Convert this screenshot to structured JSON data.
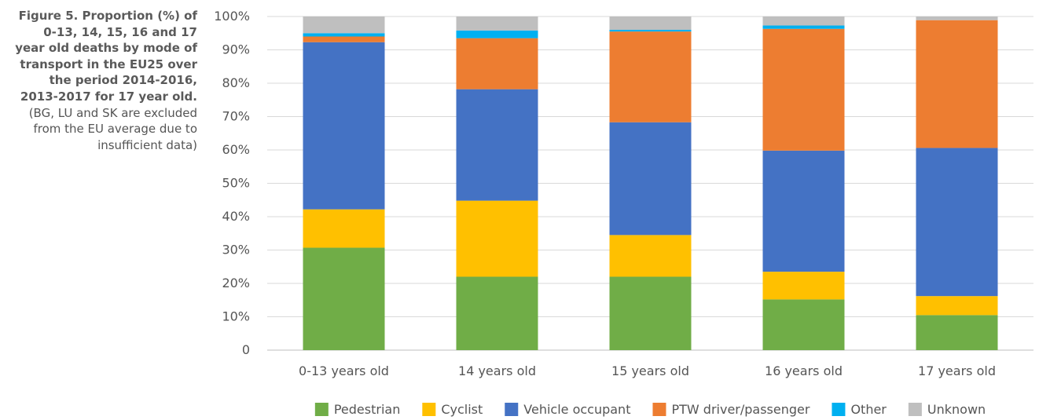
{
  "caption": {
    "bold": "Figure 5. Proportion (%) of 0-13, 14, 15, 16 and 17 year old deaths by mode of transport in the EU25 over the period 2014-2016, 2013-2017 for 17 year old.",
    "normal": " (BG, LU and SK are excluded from the EU average due to insufficient data)"
  },
  "chart_data": {
    "type": "bar",
    "stacked": true,
    "categories": [
      "0-13 years old",
      "14 years old",
      "15 years old",
      "16 years old",
      "17 years old"
    ],
    "y_tick_labels": [
      "0",
      "10%",
      "20%",
      "30%",
      "40%",
      "50%",
      "60%",
      "70%",
      "80%",
      "90%",
      "100%"
    ],
    "ylim": [
      0,
      100
    ],
    "grid": true,
    "legend_position": "bottom",
    "series": [
      {
        "name": "Pedestrian",
        "color": "#70ad47",
        "values": [
          30.7,
          22.0,
          22.0,
          15.2,
          10.5
        ]
      },
      {
        "name": "Cyclist",
        "color": "#ffc000",
        "values": [
          11.5,
          22.8,
          12.5,
          8.3,
          5.7
        ]
      },
      {
        "name": "Vehicle occupant",
        "color": "#4472c4",
        "values": [
          50.1,
          33.4,
          33.8,
          36.3,
          44.4
        ]
      },
      {
        "name": "PTW driver/passenger",
        "color": "#ed7d31",
        "values": [
          1.7,
          15.3,
          27.2,
          36.5,
          38.3
        ]
      },
      {
        "name": "Other",
        "color": "#00b0f0",
        "values": [
          1.0,
          2.3,
          0.5,
          1.0,
          0.0
        ]
      },
      {
        "name": "Unknown",
        "color": "#bfbfbf",
        "values": [
          5.0,
          4.2,
          4.0,
          2.7,
          1.1
        ]
      }
    ]
  }
}
